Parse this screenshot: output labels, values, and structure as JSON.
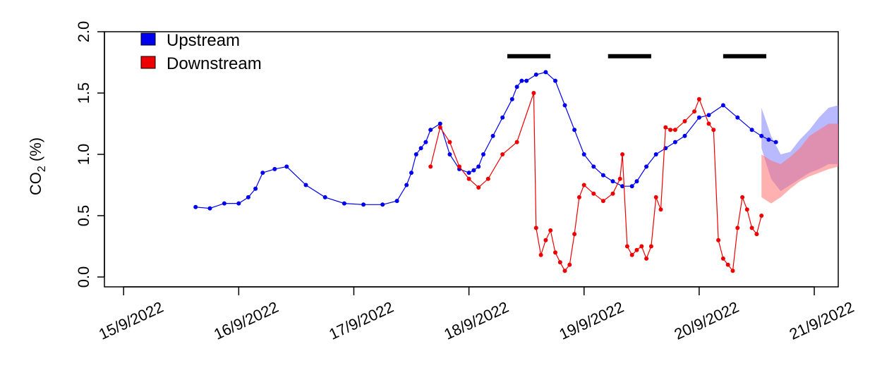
{
  "chart_data": {
    "type": "line",
    "title": "",
    "xlabel": "",
    "ylabel_main": "CO",
    "ylabel_sub": "2",
    "ylabel_unit": " (%)",
    "ylim": [
      0.0,
      2.0
    ],
    "y_ticks": [
      "0.0",
      "0.5",
      "1.0",
      "1.5",
      "2.0"
    ],
    "xlim": [
      "2022-09-14T20:00",
      "2022-09-21T05:00"
    ],
    "x_ticks": [
      {
        "date": "2022-09-15",
        "label": "15/9/2022"
      },
      {
        "date": "2022-09-16",
        "label": "16/9/2022"
      },
      {
        "date": "2022-09-17",
        "label": "17/9/2022"
      },
      {
        "date": "2022-09-18",
        "label": "18/9/2022"
      },
      {
        "date": "2022-09-19",
        "label": "19/9/2022"
      },
      {
        "date": "2022-09-20",
        "label": "20/9/2022"
      },
      {
        "date": "2022-09-21",
        "label": "21/9/2022"
      }
    ],
    "grid": false,
    "legend_position": "top-left",
    "series": [
      {
        "name": "Upstream",
        "color": "#0000ee",
        "x": [
          "2022-09-15T15:00",
          "2022-09-15T18:00",
          "2022-09-15T21:00",
          "2022-09-16T00:00",
          "2022-09-16T02:00",
          "2022-09-16T03:30",
          "2022-09-16T05:00",
          "2022-09-16T07:30",
          "2022-09-16T10:00",
          "2022-09-16T14:00",
          "2022-09-16T18:00",
          "2022-09-16T22:00",
          "2022-09-17T02:00",
          "2022-09-17T06:00",
          "2022-09-17T09:00",
          "2022-09-17T11:00",
          "2022-09-17T12:00",
          "2022-09-17T13:00",
          "2022-09-17T14:00",
          "2022-09-17T15:00",
          "2022-09-17T16:00",
          "2022-09-17T18:00",
          "2022-09-17T20:00",
          "2022-09-17T22:00",
          "2022-09-18T00:00",
          "2022-09-18T01:00",
          "2022-09-18T02:00",
          "2022-09-18T03:00",
          "2022-09-18T05:00",
          "2022-09-18T07:00",
          "2022-09-18T09:00",
          "2022-09-18T10:00",
          "2022-09-18T11:00",
          "2022-09-18T12:00",
          "2022-09-18T14:00",
          "2022-09-18T16:00",
          "2022-09-18T18:00",
          "2022-09-18T20:00",
          "2022-09-18T22:00",
          "2022-09-19T00:00",
          "2022-09-19T02:00",
          "2022-09-19T04:00",
          "2022-09-19T06:00",
          "2022-09-19T08:00",
          "2022-09-19T10:00",
          "2022-09-19T11:00",
          "2022-09-19T13:00",
          "2022-09-19T15:00",
          "2022-09-19T17:00",
          "2022-09-19T19:00",
          "2022-09-19T21:00",
          "2022-09-20T00:00",
          "2022-09-20T02:00",
          "2022-09-20T05:00",
          "2022-09-20T08:00",
          "2022-09-20T11:00",
          "2022-09-20T13:00",
          "2022-09-20T14:30",
          "2022-09-20T16:00"
        ],
        "values": [
          0.57,
          0.56,
          0.6,
          0.6,
          0.65,
          0.72,
          0.85,
          0.88,
          0.9,
          0.75,
          0.65,
          0.6,
          0.59,
          0.59,
          0.62,
          0.75,
          0.85,
          1.0,
          1.05,
          1.1,
          1.2,
          1.25,
          1.0,
          0.88,
          0.85,
          0.87,
          0.9,
          1.0,
          1.15,
          1.3,
          1.45,
          1.55,
          1.6,
          1.6,
          1.65,
          1.67,
          1.6,
          1.4,
          1.2,
          1.0,
          0.9,
          0.83,
          0.78,
          0.74,
          0.74,
          0.78,
          0.9,
          1.0,
          1.05,
          1.1,
          1.15,
          1.3,
          1.32,
          1.4,
          1.3,
          1.2,
          1.15,
          1.12,
          1.1
        ]
      },
      {
        "name": "Downstream",
        "color": "#ee0000",
        "x": [
          "2022-09-17T16:00",
          "2022-09-17T18:00",
          "2022-09-17T20:00",
          "2022-09-17T22:00",
          "2022-09-18T00:00",
          "2022-09-18T02:00",
          "2022-09-18T04:00",
          "2022-09-18T07:00",
          "2022-09-18T10:00",
          "2022-09-18T13:30",
          "2022-09-18T14:00",
          "2022-09-18T15:00",
          "2022-09-18T16:00",
          "2022-09-18T17:00",
          "2022-09-18T18:00",
          "2022-09-18T19:00",
          "2022-09-18T20:00",
          "2022-09-18T21:00",
          "2022-09-18T22:00",
          "2022-09-18T23:00",
          "2022-09-19T00:00",
          "2022-09-19T02:00",
          "2022-09-19T04:00",
          "2022-09-19T06:00",
          "2022-09-19T07:30",
          "2022-09-19T08:00",
          "2022-09-19T09:00",
          "2022-09-19T10:00",
          "2022-09-19T11:00",
          "2022-09-19T12:00",
          "2022-09-19T13:00",
          "2022-09-19T14:00",
          "2022-09-19T15:00",
          "2022-09-19T16:00",
          "2022-09-19T17:00",
          "2022-09-19T18:00",
          "2022-09-19T19:00",
          "2022-09-19T21:00",
          "2022-09-19T23:00",
          "2022-09-20T00:00",
          "2022-09-20T02:00",
          "2022-09-20T03:00",
          "2022-09-20T04:00",
          "2022-09-20T05:00",
          "2022-09-20T06:00",
          "2022-09-20T07:00",
          "2022-09-20T08:00",
          "2022-09-20T09:00",
          "2022-09-20T10:00",
          "2022-09-20T11:00",
          "2022-09-20T12:00",
          "2022-09-20T13:00"
        ],
        "values": [
          0.9,
          1.22,
          1.1,
          0.9,
          0.8,
          0.73,
          0.8,
          1.0,
          1.1,
          1.5,
          0.4,
          0.18,
          0.3,
          0.38,
          0.2,
          0.12,
          0.05,
          0.1,
          0.35,
          0.65,
          0.75,
          0.68,
          0.62,
          0.68,
          0.8,
          1.0,
          0.25,
          0.18,
          0.22,
          0.25,
          0.15,
          0.25,
          0.65,
          0.55,
          1.22,
          1.2,
          1.2,
          1.27,
          1.35,
          1.45,
          1.25,
          1.2,
          0.3,
          0.15,
          0.1,
          0.05,
          0.4,
          0.65,
          0.55,
          0.4,
          0.35,
          0.5
        ]
      }
    ],
    "bands": [
      {
        "series": "Upstream",
        "color": "#8080ff",
        "x": [
          "2022-09-20T13:00",
          "2022-09-20T15:00",
          "2022-09-20T17:00",
          "2022-09-20T19:00",
          "2022-09-20T21:00",
          "2022-09-20T23:00",
          "2022-09-21T01:00",
          "2022-09-21T03:00",
          "2022-09-21T05:00"
        ],
        "lower": [
          1.05,
          0.8,
          0.7,
          0.75,
          0.8,
          0.85,
          0.88,
          0.92,
          0.92
        ],
        "upper": [
          1.38,
          1.15,
          1.0,
          1.02,
          1.12,
          1.2,
          1.3,
          1.38,
          1.4
        ]
      },
      {
        "series": "Downstream",
        "color": "#ff7070",
        "x": [
          "2022-09-20T13:00",
          "2022-09-20T15:00",
          "2022-09-20T17:00",
          "2022-09-20T19:00",
          "2022-09-20T21:00",
          "2022-09-20T23:00",
          "2022-09-21T01:00",
          "2022-09-21T03:00",
          "2022-09-21T05:00"
        ],
        "lower": [
          0.65,
          0.6,
          0.65,
          0.72,
          0.78,
          0.82,
          0.85,
          0.88,
          0.9
        ],
        "upper": [
          1.0,
          0.95,
          0.92,
          0.98,
          1.05,
          1.15,
          1.2,
          1.25,
          1.25
        ]
      }
    ],
    "annotations": [
      {
        "type": "horizontal-bar",
        "y": 1.8,
        "x_start": "2022-09-18T08:00",
        "x_end": "2022-09-18T17:00"
      },
      {
        "type": "horizontal-bar",
        "y": 1.8,
        "x_start": "2022-09-19T05:00",
        "x_end": "2022-09-19T14:00"
      },
      {
        "type": "horizontal-bar",
        "y": 1.8,
        "x_start": "2022-09-20T05:00",
        "x_end": "2022-09-20T14:00"
      }
    ]
  }
}
